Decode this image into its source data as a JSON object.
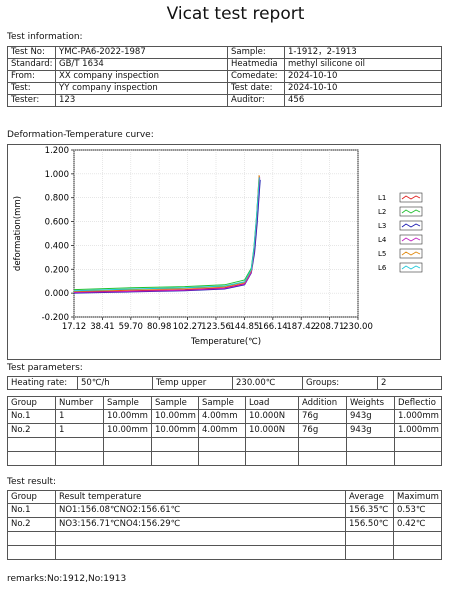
{
  "title": "Vicat test report",
  "test_information": {
    "label": "Test information:",
    "rows": [
      [
        "Test No:",
        "YMC-PA6-2022-1987",
        "Sample:",
        "1-1912，2-1913"
      ],
      [
        "Standard:",
        "GB/T 1634",
        "Heatmedia",
        "methyl silicone oil"
      ],
      [
        "From:",
        "XX company inspection",
        "Comedate:",
        "2024-10-10"
      ],
      [
        "Test:",
        "YY company inspection",
        "Test date:",
        "2024-10-10"
      ],
      [
        "Tester:",
        "123",
        "Auditor:",
        "456"
      ]
    ]
  },
  "chart_section_label": "Deformation-Temperature curve:",
  "chart_data": {
    "type": "line",
    "title": "",
    "xlabel": "Temperature(℃)",
    "ylabel": "deformation(mm)",
    "xlim": [
      17.12,
      230.0
    ],
    "ylim": [
      -0.2,
      1.2
    ],
    "x_ticks": [
      "17.12",
      "38.41",
      "59.70",
      "80.98",
      "102.27",
      "123.56",
      "144.85",
      "166.14",
      "187.42",
      "208.71",
      "230.00"
    ],
    "y_ticks": [
      "-0.200",
      "0.000",
      "0.200",
      "0.400",
      "0.600",
      "0.800",
      "1.000",
      "1.200"
    ],
    "grid": true,
    "legend_position": "right",
    "series": [
      {
        "name": "L1",
        "color": "#e02020",
        "x": [
          17.12,
          60,
          100,
          130,
          145,
          150,
          152,
          154,
          156.1
        ],
        "y": [
          0.01,
          0.02,
          0.03,
          0.045,
          0.08,
          0.18,
          0.35,
          0.62,
          0.98
        ]
      },
      {
        "name": "L2",
        "color": "#22c030",
        "x": [
          17.12,
          60,
          100,
          130,
          145,
          150,
          152,
          154,
          155.8
        ],
        "y": [
          0.03,
          0.045,
          0.055,
          0.07,
          0.11,
          0.21,
          0.38,
          0.65,
          0.96
        ]
      },
      {
        "name": "L3",
        "color": "#1a1ab0",
        "x": [
          17.12,
          60,
          100,
          130,
          145,
          150,
          152.5,
          154.5,
          156.7
        ],
        "y": [
          0.0,
          0.01,
          0.02,
          0.035,
          0.07,
          0.17,
          0.34,
          0.6,
          0.95
        ]
      },
      {
        "name": "L4",
        "color": "#c020c0",
        "x": [
          17.12,
          60,
          100,
          130,
          145,
          150,
          152,
          154,
          156.3
        ],
        "y": [
          0.005,
          0.015,
          0.025,
          0.04,
          0.075,
          0.175,
          0.34,
          0.6,
          0.97
        ]
      },
      {
        "name": "L5",
        "color": "#e08a10",
        "x": [
          17.12,
          60,
          100,
          130,
          145,
          150,
          152,
          154,
          155.9
        ],
        "y": [
          0.015,
          0.03,
          0.04,
          0.055,
          0.09,
          0.19,
          0.36,
          0.63,
          0.99
        ]
      },
      {
        "name": "L6",
        "color": "#20c8d8",
        "x": [
          17.12,
          60,
          100,
          130,
          145,
          150,
          152,
          154,
          156.0
        ],
        "y": [
          0.02,
          0.035,
          0.045,
          0.06,
          0.095,
          0.2,
          0.37,
          0.64,
          0.97
        ]
      }
    ]
  },
  "test_parameters": {
    "label": "Test parameters:",
    "summary": [
      "Heating rate:",
      "50℃/h",
      "Temp upper",
      "230.00℃",
      "Groups:",
      "2"
    ],
    "headers": [
      "Group",
      "Number",
      "Sample",
      "Sample",
      "Sample",
      "Load",
      "Addition",
      "Weights",
      "Deflectio"
    ],
    "rows": [
      [
        "No.1",
        "1",
        "10.00mm",
        "10.00mm",
        "4.00mm",
        "10.000N",
        "76g",
        "943g",
        "1.000mm"
      ],
      [
        "No.2",
        "1",
        "10.00mm",
        "10.00mm",
        "4.00mm",
        "10.000N",
        "76g",
        "943g",
        "1.000mm"
      ],
      [
        "",
        "",
        "",
        "",
        "",
        "",
        "",
        "",
        ""
      ],
      [
        "",
        "",
        "",
        "",
        "",
        "",
        "",
        "",
        ""
      ]
    ]
  },
  "test_result": {
    "label": "Test result:",
    "headers": [
      "Group",
      "Result temperature",
      "Average",
      "Maximum"
    ],
    "rows": [
      [
        "No.1",
        "NO1:156.08℃NO2:156.61℃",
        "156.35℃",
        "0.53℃"
      ],
      [
        "No.2",
        "NO3:156.71℃NO4:156.29℃",
        "156.50℃",
        "0.42℃"
      ],
      [
        "",
        "",
        "",
        ""
      ],
      [
        "",
        "",
        "",
        ""
      ]
    ]
  },
  "remarks": "remarks:No:1912,No:1913"
}
